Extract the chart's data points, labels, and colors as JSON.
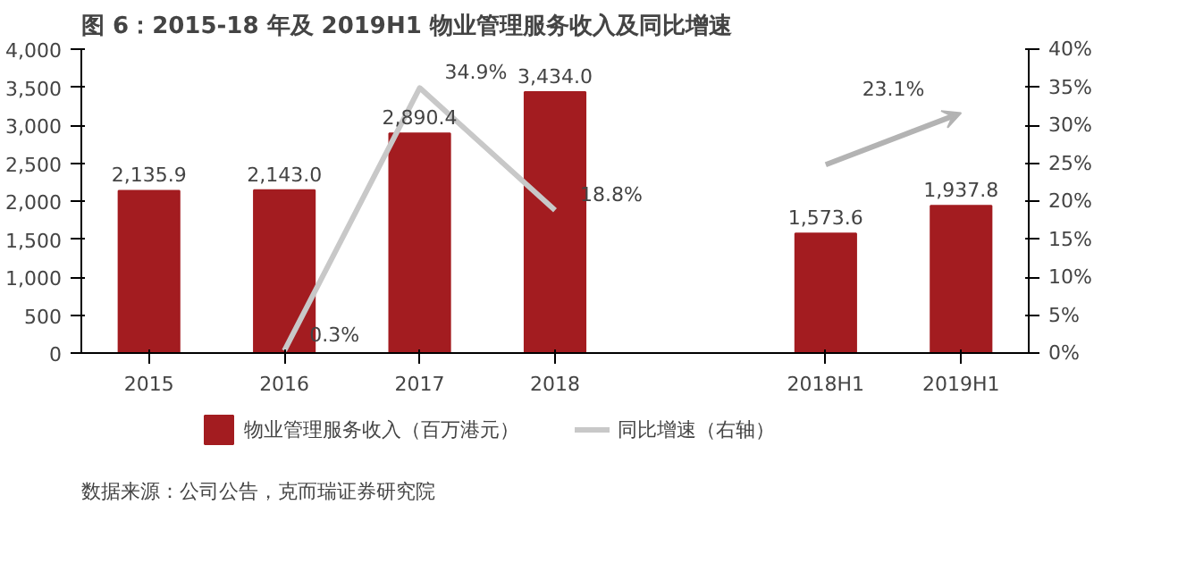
{
  "chart_data": {
    "type": "bar",
    "title": "图 6：2015-18 年及 2019H1 物业管理服务收入及同比增速",
    "categories": [
      "2015",
      "2016",
      "2017",
      "2018",
      null,
      "2018H1",
      "2019H1"
    ],
    "series": [
      {
        "name": "物业管理服务收入（百万港元）",
        "color": "#a31c20",
        "values": [
          2135.9,
          2143.0,
          2890.4,
          3434.0,
          null,
          1573.6,
          1937.8
        ],
        "value_labels": [
          "2,135.9",
          "2,143.0",
          "2,890.4",
          "3,434.0",
          null,
          "1,573.6",
          "1,937.8"
        ]
      },
      {
        "name": "同比增速（右轴）",
        "type": "line",
        "axis": "y2",
        "color": "#c8c8c8",
        "values": [
          null,
          0.3,
          34.9,
          18.8,
          null,
          null,
          null
        ],
        "value_labels": [
          null,
          "0.3%",
          "34.9%",
          "18.8%",
          null,
          null,
          null
        ]
      }
    ],
    "ylim": [
      0,
      4000
    ],
    "yticks": [
      0,
      {
        "value": 500,
        "label": "500"
      },
      {
        "value": 1000,
        "label": "1,000"
      },
      {
        "value": 1500,
        "label": "1,500"
      },
      {
        "value": 2000,
        "label": "2,000"
      },
      {
        "value": 2500,
        "label": "2,500"
      },
      {
        "value": 3000,
        "label": "3,000"
      },
      {
        "value": 3500,
        "label": "3,500"
      },
      {
        "value": 4000,
        "label": "4,000"
      }
    ],
    "y2lim": [
      0,
      40
    ],
    "y2ticks": [
      {
        "value": 0,
        "label": "0%"
      },
      {
        "value": 5,
        "label": "5%"
      },
      {
        "value": 10,
        "label": "10%"
      },
      {
        "value": 15,
        "label": "15%"
      },
      {
        "value": 20,
        "label": "20%"
      },
      {
        "value": 25,
        "label": "25%"
      },
      {
        "value": 30,
        "label": "30%"
      },
      {
        "value": 35,
        "label": "35%"
      },
      {
        "value": 40,
        "label": "40%"
      }
    ],
    "annotations": [
      "23.1%",
      "数据来源：公司公告，克而瑞证券研究院"
    ],
    "legend": "bottom",
    "grid": false
  }
}
